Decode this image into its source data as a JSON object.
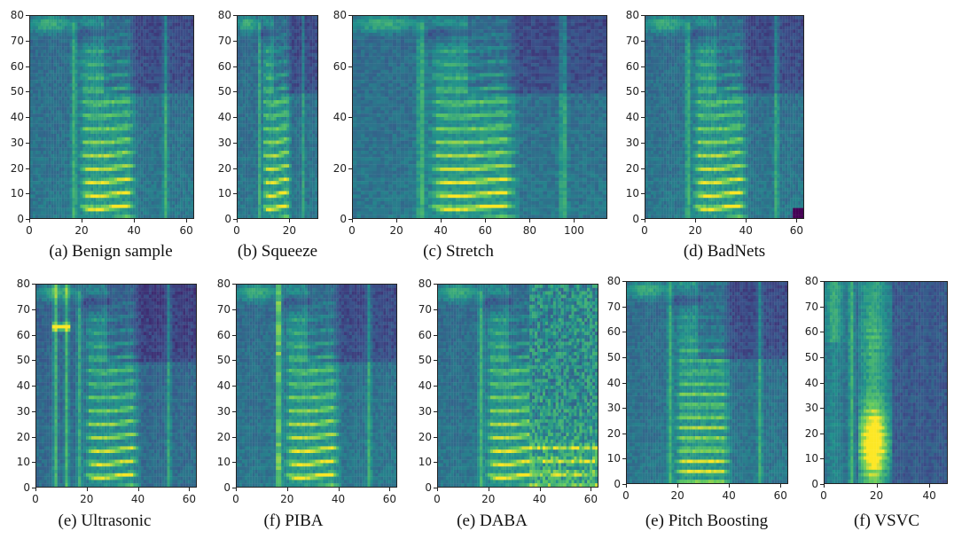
{
  "figure": {
    "colormap": [
      "#440154",
      "#3b528b",
      "#21918c",
      "#5ec962",
      "#fde725"
    ],
    "panels": [
      {
        "id": "benign",
        "caption": "(a) Benign sample",
        "yticks": [
          "0",
          "10",
          "20",
          "30",
          "40",
          "50",
          "60",
          "70",
          "80"
        ],
        "xticks": [
          "0",
          "20",
          "40",
          "60"
        ],
        "xmax": 63,
        "ymax": 80,
        "variant": "benign"
      },
      {
        "id": "squeeze",
        "caption": "(b) Squeeze",
        "yticks": [
          "0",
          "10",
          "20",
          "30",
          "40",
          "50",
          "60",
          "70",
          "80"
        ],
        "xticks": [
          "0",
          "20"
        ],
        "xmax": 31,
        "ymax": 80,
        "variant": "squeeze"
      },
      {
        "id": "stretch",
        "caption": "(c) Stretch",
        "yticks": [
          "0",
          "20",
          "40",
          "60",
          "80"
        ],
        "xticks": [
          "0",
          "20",
          "40",
          "60",
          "80",
          "100"
        ],
        "xmax": 115,
        "ymax": 80,
        "variant": "stretch"
      },
      {
        "id": "badnets",
        "caption": "(d) BadNets",
        "yticks": [
          "0",
          "10",
          "20",
          "30",
          "40",
          "50",
          "60",
          "70",
          "80"
        ],
        "xticks": [
          "0",
          "20",
          "40",
          "60"
        ],
        "xmax": 63,
        "ymax": 80,
        "variant": "badnets"
      },
      {
        "id": "ultrasonic",
        "caption": "(e) Ultrasonic",
        "yticks": [
          "0",
          "10",
          "20",
          "30",
          "40",
          "50",
          "60",
          "70",
          "80"
        ],
        "xticks": [
          "0",
          "20",
          "40",
          "60"
        ],
        "xmax": 63,
        "ymax": 80,
        "variant": "ultrasonic"
      },
      {
        "id": "piba",
        "caption": "(f) PIBA",
        "yticks": [
          "0",
          "10",
          "20",
          "30",
          "40",
          "50",
          "60",
          "70",
          "80"
        ],
        "xticks": [
          "0",
          "20",
          "40",
          "60"
        ],
        "xmax": 63,
        "ymax": 80,
        "variant": "piba"
      },
      {
        "id": "daba",
        "caption": "(e) DABA",
        "yticks": [
          "0",
          "10",
          "20",
          "30",
          "40",
          "50",
          "60",
          "70",
          "80"
        ],
        "xticks": [
          "0",
          "20",
          "40",
          "60"
        ],
        "xmax": 63,
        "ymax": 80,
        "variant": "daba"
      },
      {
        "id": "pitch",
        "caption": "(e) Pitch Boosting",
        "yticks": [
          "0",
          "10",
          "20",
          "30",
          "40",
          "50",
          "60",
          "70",
          "80"
        ],
        "xticks": [
          "0",
          "20",
          "40",
          "60"
        ],
        "xmax": 63,
        "ymax": 80,
        "variant": "pitch"
      },
      {
        "id": "vsvc",
        "caption": "(f) VSVC",
        "yticks": [
          "0",
          "10",
          "20",
          "30",
          "40",
          "50",
          "60",
          "70",
          "80"
        ],
        "xticks": [
          "0",
          "20",
          "40"
        ],
        "xmax": 47,
        "ymax": 80,
        "variant": "vsvc"
      }
    ]
  }
}
